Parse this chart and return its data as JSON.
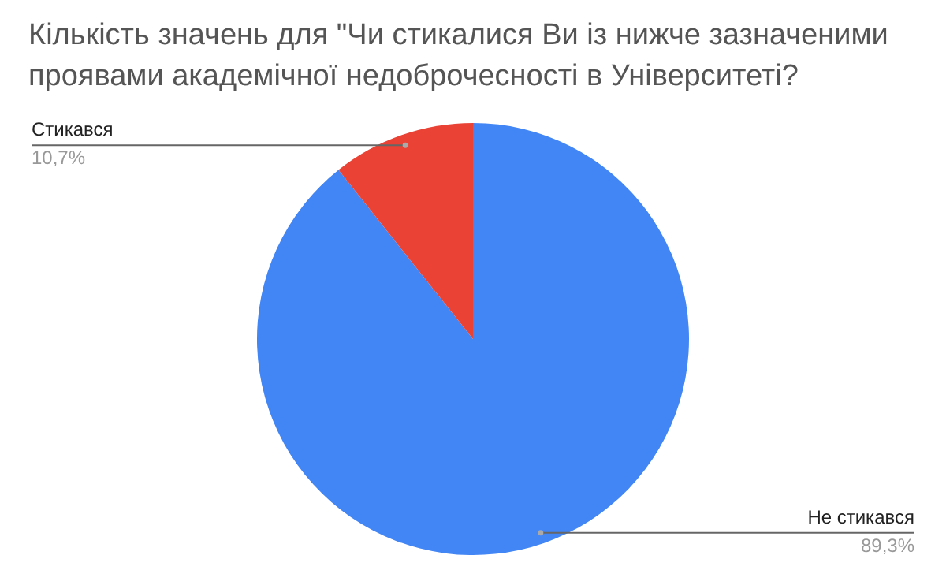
{
  "chart_data": {
    "type": "pie",
    "title": "Кількість значень для \"Чи стикалися Ви із нижче зазначеними проявами академічної недоброчесності в Університеті?",
    "categories": [
      "Не стикався",
      "Стикався"
    ],
    "values": [
      89.3,
      10.7
    ],
    "colors": [
      "#4285f4",
      "#ea4335"
    ],
    "value_labels": [
      "89,3%",
      "10,7%"
    ]
  }
}
